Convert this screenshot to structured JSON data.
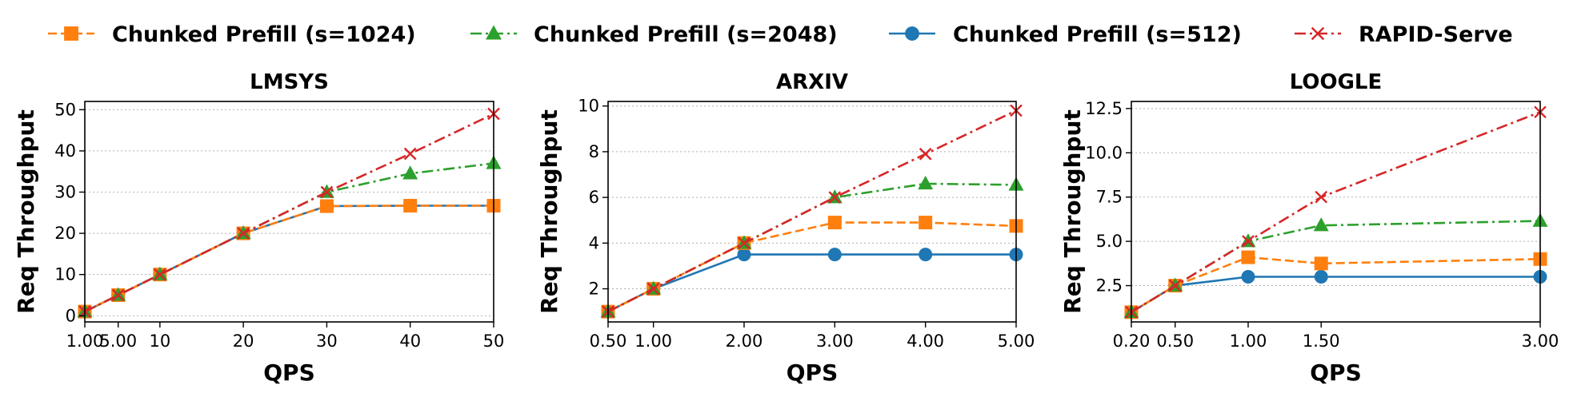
{
  "legend": [
    {
      "label": "Chunked Prefill (s=1024)",
      "color": "#ff7f0e",
      "marker": "square",
      "dash": "dashed"
    },
    {
      "label": "Chunked Prefill (s=2048)",
      "color": "#2ca02c",
      "marker": "triangle",
      "dash": "dashdot"
    },
    {
      "label": "Chunked Prefill (s=512)",
      "color": "#1f77b4",
      "marker": "circle",
      "dash": "solid"
    },
    {
      "label": "RAPID-Serve",
      "color": "#d62728",
      "marker": "x",
      "dash": "dashdot"
    }
  ],
  "chart_data": [
    {
      "type": "line",
      "title": "LMSYS",
      "xlabel": "QPS",
      "ylabel": "Req Throughput",
      "xlim": [
        1,
        50
      ],
      "ylim": [
        -1.5,
        52
      ],
      "xticks": [
        1,
        5,
        10,
        20,
        30,
        40,
        50
      ],
      "xtick_labels": [
        "1.00",
        "5.00",
        "10",
        "20",
        "30",
        "40",
        "50"
      ],
      "yticks": [
        0,
        10,
        20,
        30,
        40,
        50
      ],
      "ytick_labels": [
        "0",
        "10",
        "20",
        "30",
        "40",
        "50"
      ],
      "series": [
        {
          "name": "Chunked Prefill (s=1024)",
          "x": [
            1,
            5,
            10,
            20,
            30,
            40,
            50
          ],
          "y": [
            1,
            5,
            10,
            20,
            26.6,
            26.7,
            26.7
          ]
        },
        {
          "name": "Chunked Prefill (s=2048)",
          "x": [
            1,
            5,
            10,
            20,
            30,
            40,
            50
          ],
          "y": [
            1,
            5,
            10,
            20,
            30,
            34.5,
            37
          ]
        },
        {
          "name": "Chunked Prefill (s=512)",
          "x": [
            1,
            5,
            10,
            20,
            30,
            40,
            50
          ],
          "y": [
            1,
            5,
            10,
            20,
            26.6,
            26.7,
            26.7
          ]
        },
        {
          "name": "RAPID-Serve",
          "x": [
            1,
            5,
            10,
            20,
            30,
            40,
            50
          ],
          "y": [
            1,
            5,
            10,
            20,
            30,
            39.3,
            49
          ]
        }
      ]
    },
    {
      "type": "line",
      "title": "ARXIV",
      "xlabel": "QPS",
      "ylabel": "Req Throughput",
      "xlim": [
        0.5,
        5
      ],
      "ylim": [
        0.55,
        10.2
      ],
      "xticks": [
        0.5,
        1,
        2,
        3,
        4,
        5
      ],
      "xtick_labels": [
        "0.50",
        "1.00",
        "2.00",
        "3.00",
        "4.00",
        "5.00"
      ],
      "yticks": [
        2,
        4,
        6,
        8,
        10
      ],
      "ytick_labels": [
        "2",
        "4",
        "6",
        "8",
        "10"
      ],
      "series": [
        {
          "name": "Chunked Prefill (s=1024)",
          "x": [
            0.5,
            1,
            2,
            3,
            4,
            5
          ],
          "y": [
            1,
            2,
            4,
            4.9,
            4.9,
            4.75
          ]
        },
        {
          "name": "Chunked Prefill (s=2048)",
          "x": [
            0.5,
            1,
            2,
            3,
            4,
            5
          ],
          "y": [
            1,
            2,
            4,
            6,
            6.6,
            6.55
          ]
        },
        {
          "name": "Chunked Prefill (s=512)",
          "x": [
            0.5,
            1,
            2,
            3,
            4,
            5
          ],
          "y": [
            1,
            2,
            3.5,
            3.5,
            3.5,
            3.5
          ]
        },
        {
          "name": "RAPID-Serve",
          "x": [
            0.5,
            1,
            2,
            3,
            4,
            5
          ],
          "y": [
            1,
            2,
            4,
            6,
            7.9,
            9.8
          ]
        }
      ]
    },
    {
      "type": "line",
      "title": "LOOGLE",
      "xlabel": "QPS",
      "ylabel": "Req Throughput",
      "xlim": [
        0.2,
        3
      ],
      "ylim": [
        0.45,
        12.9
      ],
      "xticks": [
        0.2,
        0.5,
        1,
        1.5,
        3
      ],
      "xtick_labels": [
        "0.20",
        "0.50",
        "1.00",
        "1.50",
        "3.00"
      ],
      "yticks": [
        2.5,
        5,
        7.5,
        10,
        12.5
      ],
      "ytick_labels": [
        "2.5",
        "5.0",
        "7.5",
        "10.0",
        "12.5"
      ],
      "series": [
        {
          "name": "Chunked Prefill (s=1024)",
          "x": [
            0.2,
            0.5,
            1,
            1.5,
            3
          ],
          "y": [
            1,
            2.5,
            4.1,
            3.75,
            4.0
          ]
        },
        {
          "name": "Chunked Prefill (s=2048)",
          "x": [
            0.2,
            0.5,
            1,
            1.5,
            3
          ],
          "y": [
            1,
            2.5,
            5,
            5.9,
            6.15
          ]
        },
        {
          "name": "Chunked Prefill (s=512)",
          "x": [
            0.2,
            0.5,
            1,
            1.5,
            3
          ],
          "y": [
            1,
            2.5,
            3,
            3,
            3
          ]
        },
        {
          "name": "RAPID-Serve",
          "x": [
            0.2,
            0.5,
            1,
            1.5,
            3
          ],
          "y": [
            1,
            2.5,
            5,
            7.5,
            12.3
          ]
        }
      ]
    }
  ]
}
